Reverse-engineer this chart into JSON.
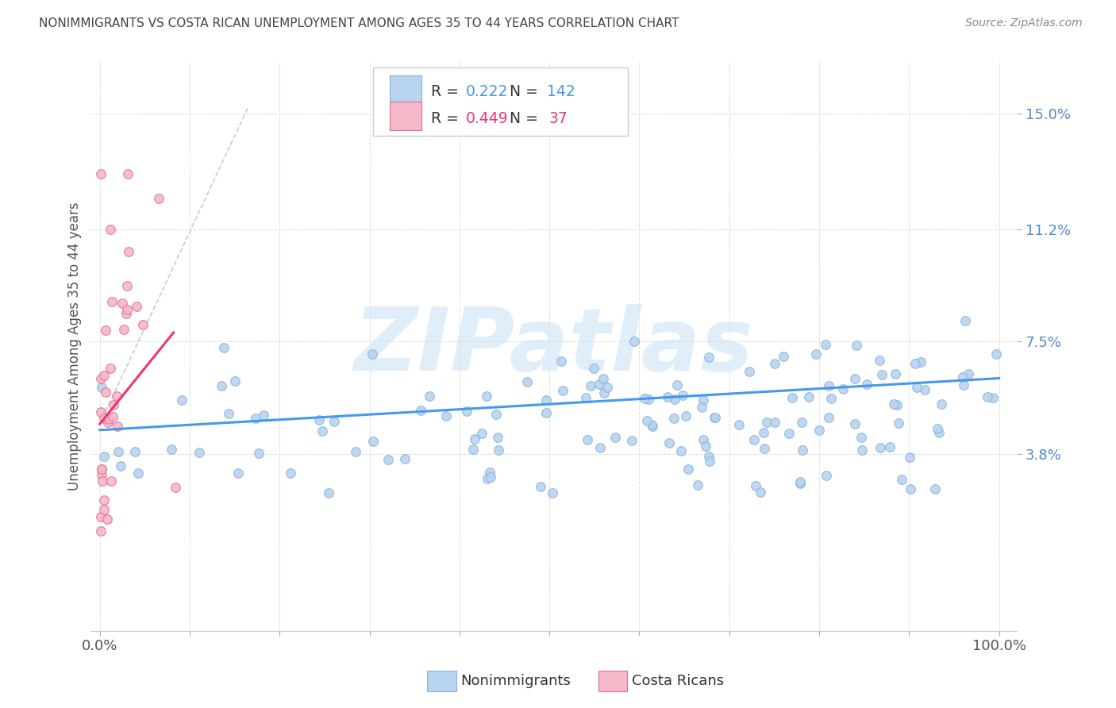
{
  "title": "NONIMMIGRANTS VS COSTA RICAN UNEMPLOYMENT AMONG AGES 35 TO 44 YEARS CORRELATION CHART",
  "source": "Source: ZipAtlas.com",
  "ylabel": "Unemployment Among Ages 35 to 44 years",
  "nonimmigrant_color": "#b8d4ee",
  "nonimmigrant_edge": "#88b4dd",
  "costa_rican_color": "#f5b8c8",
  "costa_rican_edge": "#e07090",
  "trend_blue": "#4499ee",
  "trend_pink": "#ee3377",
  "trend_gray": "#cccccc",
  "watermark_color": "#cce4f5",
  "watermark_text": "ZIPatlas",
  "legend_r_blue": "0.222",
  "legend_n_blue": "142",
  "legend_r_pink": "0.449",
  "legend_n_pink": "37",
  "ytick_vals": [
    0.038,
    0.075,
    0.112,
    0.15
  ],
  "ytick_labels": [
    "3.8%",
    "7.5%",
    "11.2%",
    "15.0%"
  ],
  "ytick_color": "#5588cc",
  "title_color": "#444444",
  "source_color": "#888888",
  "ylabel_color": "#555555"
}
